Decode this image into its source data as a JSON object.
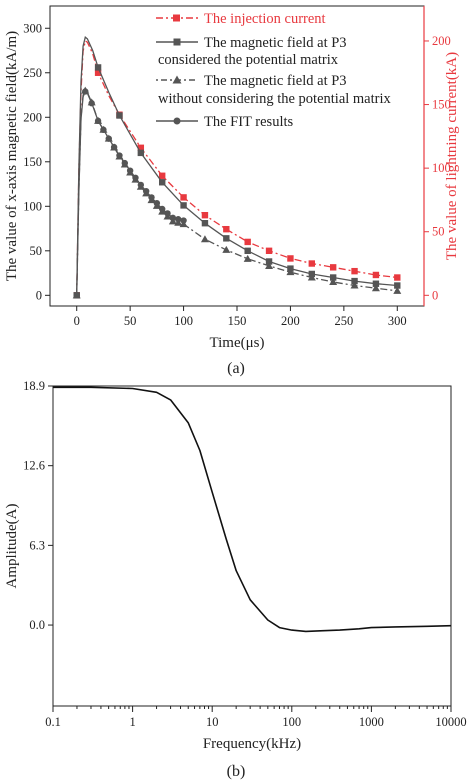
{
  "chart_data": [
    {
      "type": "line",
      "panel_label": "(a)",
      "xlabel": "Time(μs)",
      "ylabel": "The value of x-axis magnetic field(kA/m)",
      "y2label": "The value of lightning current(kA)",
      "xlim": [
        -25,
        325
      ],
      "ylim": [
        -12,
        325
      ],
      "y2lim": [
        -8.4,
        227.5
      ],
      "x_ticks": [
        0,
        50,
        100,
        150,
        200,
        250,
        300
      ],
      "y_ticks": [
        0,
        50,
        100,
        150,
        200,
        250,
        300
      ],
      "y2_ticks": [
        0,
        50,
        100,
        150,
        200
      ],
      "grid": false,
      "legend_position": "top-right",
      "colors": {
        "injection": "#e8393f",
        "field": "#555555"
      },
      "legend": {
        "injection": "The injection current",
        "p3_with_1": "The magnetic field at P3",
        "p3_with_2": "considered the potential matrix",
        "p3_without_1": "The magnetic field at P3",
        "p3_without_2": "without considering the potential matrix",
        "fit": "The FIT results"
      },
      "series": [
        {
          "name": "The injection current",
          "axis": "right",
          "marker": "square",
          "line": "dash-dot",
          "x": [
            0,
            2,
            4,
            6,
            8,
            10,
            15,
            20,
            30,
            40,
            60,
            80,
            100,
            120,
            140,
            160,
            180,
            200,
            220,
            240,
            260,
            280,
            300
          ],
          "values": [
            0,
            100,
            160,
            192,
            200,
            199,
            190,
            175,
            157,
            142,
            116,
            94,
            77,
            63,
            52,
            42,
            35,
            29,
            25,
            22,
            19,
            16,
            14
          ],
          "marker_x": [
            0,
            20,
            40,
            60,
            80,
            100,
            120,
            140,
            160,
            180,
            200,
            220,
            240,
            260,
            280,
            300
          ]
        },
        {
          "name": "The magnetic field at P3 considered the potential matrix",
          "axis": "left",
          "marker": "square",
          "line": "solid",
          "x": [
            0,
            2,
            4,
            6,
            8,
            10,
            15,
            20,
            30,
            40,
            60,
            80,
            100,
            120,
            140,
            160,
            180,
            200,
            220,
            240,
            260,
            280,
            300
          ],
          "values": [
            0,
            145,
            240,
            280,
            290,
            288,
            275,
            256,
            228,
            202,
            160,
            127,
            101,
            81,
            64,
            50,
            38,
            30,
            24,
            20,
            16,
            13,
            11
          ],
          "marker_x": [
            0,
            20,
            40,
            60,
            80,
            100,
            120,
            140,
            160,
            180,
            200,
            220,
            240,
            260,
            280,
            300
          ]
        },
        {
          "name": "The magnetic field at P3 without considering the potential matrix",
          "axis": "left",
          "marker": "triangle",
          "line": "dash-dot",
          "x": [
            0,
            2,
            4,
            6,
            8,
            10,
            15,
            20,
            30,
            40,
            50,
            60,
            70,
            80,
            90,
            100,
            120,
            140,
            160,
            180,
            200,
            220,
            240,
            260,
            280,
            300
          ],
          "values": [
            0,
            120,
            200,
            225,
            230,
            228,
            214,
            196,
            176,
            156,
            138,
            122,
            107,
            94,
            83,
            80,
            63,
            51,
            41,
            33,
            26,
            20,
            15,
            11,
            8,
            5
          ],
          "marker_x": [
            0,
            8,
            14,
            20,
            25,
            30,
            35,
            40,
            45,
            50,
            55,
            60,
            65,
            70,
            75,
            80,
            85,
            90,
            95,
            100,
            120,
            140,
            160,
            180,
            200,
            220,
            240,
            260,
            280,
            300
          ]
        },
        {
          "name": "The FIT results",
          "axis": "left",
          "marker": "circle",
          "line": "solid",
          "x": [
            0,
            2,
            4,
            6,
            8,
            10,
            15,
            20,
            30,
            40,
            50,
            60,
            70,
            80,
            90,
            100
          ],
          "values": [
            0,
            118,
            198,
            223,
            229,
            227,
            213,
            196,
            176,
            157,
            140,
            124,
            110,
            97,
            87,
            84
          ],
          "marker_x": [
            0,
            8,
            14,
            20,
            25,
            30,
            35,
            40,
            45,
            50,
            55,
            60,
            65,
            70,
            75,
            80,
            85,
            90,
            95,
            100
          ]
        }
      ]
    },
    {
      "type": "line",
      "panel_label": "(b)",
      "xlabel": "Frequency(kHz)",
      "ylabel": "Amplitude(A)",
      "xscale": "log",
      "xlim": [
        0.1,
        10000
      ],
      "ylim": [
        -6.4,
        18.9
      ],
      "x_ticks": [
        "0.1",
        "1",
        "10",
        "100",
        "1000",
        "10000"
      ],
      "y_ticks": [
        "0.0",
        "6.3",
        "12.6",
        "18.9"
      ],
      "grid": false,
      "color": "#111111",
      "series": [
        {
          "x": [
            0.1,
            0.3,
            1,
            2,
            3,
            5,
            7,
            10,
            15,
            20,
            30,
            50,
            70,
            100,
            150,
            250,
            400,
            700,
            1000,
            2000,
            5000,
            10000
          ],
          "values": [
            18.8,
            18.8,
            18.7,
            18.4,
            17.8,
            16.0,
            13.8,
            10.5,
            6.8,
            4.3,
            2.0,
            0.4,
            -0.2,
            -0.4,
            -0.5,
            -0.45,
            -0.4,
            -0.3,
            -0.2,
            -0.15,
            -0.1,
            -0.05
          ]
        }
      ]
    }
  ]
}
